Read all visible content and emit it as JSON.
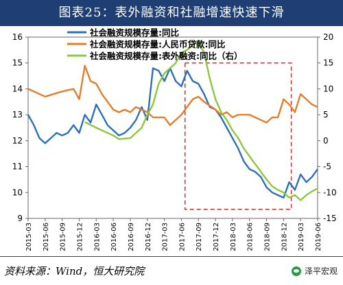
{
  "header": {
    "title": "图表25：表外融资和社融增速快速下滑"
  },
  "footer": {
    "source": "资料来源：Wind，恒大研究院",
    "brand": "泽平宏观"
  },
  "colors": {
    "title_bg": "#1f3f74",
    "series": [
      "#2a6fb8",
      "#e27d2b",
      "#8cc63e"
    ],
    "highlight": "#e53030"
  },
  "chart_data": {
    "type": "line",
    "x_ticks": [
      "2015-03",
      "2015-06",
      "2015-09",
      "2015-12",
      "2016-03",
      "2016-06",
      "2016-09",
      "2016-12",
      "2017-03",
      "2017-06",
      "2017-09",
      "2017-12",
      "2018-03",
      "2018-06",
      "2018-09",
      "2018-12",
      "2019-03",
      "2019-06"
    ],
    "y_left": {
      "min": 9,
      "max": 16,
      "ticks": [
        9,
        10,
        11,
        12,
        13,
        14,
        15,
        16
      ]
    },
    "y_right": {
      "min": -15,
      "max": 20,
      "ticks": [
        -15,
        -10,
        -5,
        0,
        5,
        10,
        15,
        20
      ]
    },
    "legend": [
      "社会融资规模存量:同比",
      "社会融资规模存量:人民币贷款:同比",
      "社会融资规模存量:表外融资:同比（右）"
    ],
    "highlight_box": {
      "x_from": "2017-07",
      "x_to": "2019-01"
    },
    "series": [
      {
        "name": "社会融资规模存量:同比",
        "axis": "left",
        "color": "#2a6fb8",
        "points": [
          [
            "2015-03",
            13.0
          ],
          [
            "2015-04",
            12.6
          ],
          [
            "2015-05",
            12.1
          ],
          [
            "2015-06",
            11.9
          ],
          [
            "2015-07",
            12.1
          ],
          [
            "2015-08",
            12.3
          ],
          [
            "2015-09",
            12.2
          ],
          [
            "2015-10",
            12.3
          ],
          [
            "2015-11",
            12.6
          ],
          [
            "2015-12",
            12.3
          ],
          [
            "2016-01",
            13.0
          ],
          [
            "2016-02",
            12.7
          ],
          [
            "2016-03",
            13.4
          ],
          [
            "2016-04",
            13.0
          ],
          [
            "2016-05",
            12.6
          ],
          [
            "2016-06",
            12.4
          ],
          [
            "2016-07",
            12.2
          ],
          [
            "2016-08",
            12.3
          ],
          [
            "2016-09",
            12.5
          ],
          [
            "2016-10",
            12.8
          ],
          [
            "2016-11",
            13.3
          ],
          [
            "2016-12",
            12.8
          ],
          [
            "2017-01",
            14.8
          ],
          [
            "2017-02",
            14.7
          ],
          [
            "2017-03",
            14.3
          ],
          [
            "2017-04",
            14.8
          ],
          [
            "2017-05",
            14.3
          ],
          [
            "2017-06",
            14.1
          ],
          [
            "2017-07",
            14.7
          ],
          [
            "2017-08",
            14.3
          ],
          [
            "2017-09",
            14.2
          ],
          [
            "2017-10",
            13.8
          ],
          [
            "2017-11",
            13.3
          ],
          [
            "2017-12",
            13.2
          ],
          [
            "2018-01",
            12.9
          ],
          [
            "2018-02",
            12.5
          ],
          [
            "2018-03",
            12.1
          ],
          [
            "2018-04",
            11.7
          ],
          [
            "2018-05",
            11.2
          ],
          [
            "2018-06",
            10.9
          ],
          [
            "2018-07",
            10.8
          ],
          [
            "2018-08",
            10.6
          ],
          [
            "2018-09",
            10.2
          ],
          [
            "2018-10",
            10.0
          ],
          [
            "2018-11",
            9.9
          ],
          [
            "2018-12",
            9.8
          ],
          [
            "2019-01",
            10.4
          ],
          [
            "2019-02",
            10.1
          ],
          [
            "2019-03",
            10.7
          ],
          [
            "2019-04",
            10.4
          ],
          [
            "2019-05",
            10.6
          ],
          [
            "2019-06",
            10.9
          ]
        ]
      },
      {
        "name": "社会融资规模存量:人民币贷款:同比",
        "axis": "left",
        "color": "#e27d2b",
        "points": [
          [
            "2015-03",
            14.0
          ],
          [
            "2015-06",
            13.7
          ],
          [
            "2015-09",
            13.9
          ],
          [
            "2015-11",
            14.0
          ],
          [
            "2015-12",
            13.6
          ],
          [
            "2016-01",
            14.9
          ],
          [
            "2016-02",
            14.3
          ],
          [
            "2016-03",
            14.2
          ],
          [
            "2016-04",
            13.8
          ],
          [
            "2016-06",
            13.2
          ],
          [
            "2016-07",
            13.1
          ],
          [
            "2016-08",
            13.2
          ],
          [
            "2016-09",
            13.1
          ],
          [
            "2016-10",
            13.3
          ],
          [
            "2016-12",
            13.1
          ],
          [
            "2017-01",
            12.9
          ],
          [
            "2017-03",
            12.9
          ],
          [
            "2017-04",
            12.6
          ],
          [
            "2017-06",
            13.0
          ],
          [
            "2017-08",
            13.6
          ],
          [
            "2017-09",
            13.7
          ],
          [
            "2017-10",
            13.5
          ],
          [
            "2017-12",
            13.2
          ],
          [
            "2018-01",
            13.0
          ],
          [
            "2018-02",
            13.1
          ],
          [
            "2018-03",
            12.9
          ],
          [
            "2018-04",
            13.0
          ],
          [
            "2018-06",
            13.0
          ],
          [
            "2018-07",
            12.9
          ],
          [
            "2018-08",
            12.8
          ],
          [
            "2018-09",
            12.7
          ],
          [
            "2018-10",
            12.9
          ],
          [
            "2018-11",
            12.9
          ],
          [
            "2018-12",
            13.6
          ],
          [
            "2019-01",
            13.4
          ],
          [
            "2019-02",
            13.1
          ],
          [
            "2019-03",
            13.8
          ],
          [
            "2019-04",
            13.6
          ],
          [
            "2019-05",
            13.4
          ],
          [
            "2019-06",
            13.3
          ]
        ]
      },
      {
        "name": "社会融资规模存量:表外融资:同比（右）",
        "axis": "right",
        "color": "#8cc63e",
        "points": [
          [
            "2016-01",
            3.6
          ],
          [
            "2016-03",
            2.5
          ],
          [
            "2016-06",
            1.0
          ],
          [
            "2016-07",
            0.3
          ],
          [
            "2016-09",
            0.5
          ],
          [
            "2016-11",
            2.5
          ],
          [
            "2016-12",
            5.0
          ],
          [
            "2017-01",
            7.0
          ],
          [
            "2017-02",
            11.0
          ],
          [
            "2017-03",
            13.0
          ],
          [
            "2017-04",
            14.0
          ],
          [
            "2017-05",
            15.0
          ],
          [
            "2017-06",
            17.0
          ],
          [
            "2017-07",
            17.5
          ],
          [
            "2017-08",
            18.5
          ],
          [
            "2017-09",
            19.0
          ],
          [
            "2017-10",
            17.0
          ],
          [
            "2017-11",
            12.0
          ],
          [
            "2017-12",
            8.0
          ],
          [
            "2018-01",
            5.5
          ],
          [
            "2018-02",
            4.0
          ],
          [
            "2018-03",
            2.0
          ],
          [
            "2018-04",
            0.5
          ],
          [
            "2018-05",
            -1.5
          ],
          [
            "2018-06",
            -3.0
          ],
          [
            "2018-07",
            -4.5
          ],
          [
            "2018-08",
            -6.0
          ],
          [
            "2018-09",
            -7.5
          ],
          [
            "2018-10",
            -8.8
          ],
          [
            "2018-11",
            -9.5
          ],
          [
            "2018-12",
            -10.0
          ],
          [
            "2019-01",
            -11.0
          ],
          [
            "2019-02",
            -10.5
          ],
          [
            "2019-03",
            -11.5
          ],
          [
            "2019-04",
            -10.5
          ],
          [
            "2019-05",
            -9.8
          ],
          [
            "2019-06",
            -9.2
          ]
        ]
      }
    ]
  }
}
